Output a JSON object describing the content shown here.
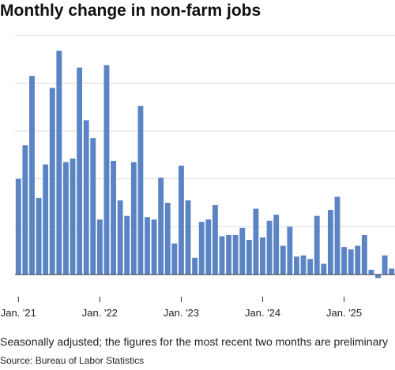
{
  "title": "Monthly change in non-farm jobs",
  "caption": "Seasonally adjusted; the figures for the most recent two months are preliminary",
  "source": "Source: Bureau of Labor Statistics",
  "colors": {
    "bar": "#5b84c4",
    "grid": "#dddddd",
    "axis": "#333333"
  },
  "chart_data": {
    "type": "bar",
    "title": "Monthly change in non-farm jobs",
    "xlabel": "",
    "ylabel": "",
    "ylim": [
      -20,
      1000
    ],
    "grid": true,
    "x_tick_labels": [
      "Jan. '21",
      "Jan. '22",
      "Jan. '23",
      "Jan. '24",
      "Jan. '25"
    ],
    "x_tick_indices": [
      0,
      12,
      24,
      36,
      48
    ],
    "categories": [
      "2021-01",
      "2021-02",
      "2021-03",
      "2021-04",
      "2021-05",
      "2021-06",
      "2021-07",
      "2021-08",
      "2021-09",
      "2021-10",
      "2021-11",
      "2021-12",
      "2022-01",
      "2022-02",
      "2022-03",
      "2022-04",
      "2022-05",
      "2022-06",
      "2022-07",
      "2022-08",
      "2022-09",
      "2022-10",
      "2022-11",
      "2022-12",
      "2023-01",
      "2023-02",
      "2023-03",
      "2023-04",
      "2023-05",
      "2023-06",
      "2023-07",
      "2023-08",
      "2023-09",
      "2023-10",
      "2023-11",
      "2023-12",
      "2024-01",
      "2024-02",
      "2024-03",
      "2024-04",
      "2024-05",
      "2024-06",
      "2024-07",
      "2024-08",
      "2024-09",
      "2024-10",
      "2024-11",
      "2024-12",
      "2025-01",
      "2025-02",
      "2025-03",
      "2025-04",
      "2025-05",
      "2025-06",
      "2025-07",
      "2025-08"
    ],
    "values": [
      400,
      540,
      830,
      320,
      460,
      780,
      935,
      470,
      485,
      865,
      645,
      570,
      230,
      875,
      475,
      310,
      245,
      470,
      705,
      240,
      230,
      405,
      300,
      130,
      455,
      310,
      70,
      220,
      230,
      290,
      160,
      165,
      165,
      195,
      145,
      275,
      155,
      225,
      250,
      120,
      200,
      75,
      80,
      65,
      245,
      45,
      270,
      325,
      115,
      105,
      120,
      165,
      20,
      -15,
      80,
      25
    ]
  }
}
